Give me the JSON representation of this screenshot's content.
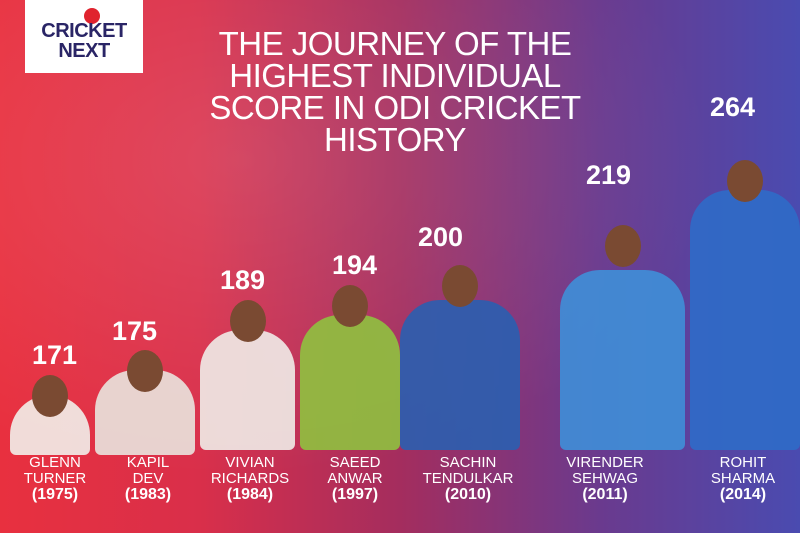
{
  "logo": {
    "line1": "CRICKET",
    "line2": "NEXT"
  },
  "title": "THE JOURNEY OF THE HIGHEST INDIVIDUAL SCORE IN ODI CRICKET HISTORY",
  "players": [
    {
      "first": "GLENN",
      "last": "TURNER",
      "year": "(1975)",
      "score": "171",
      "jersey": "#f2f0ea"
    },
    {
      "first": "KAPIL",
      "last": "DEV",
      "year": "(1983)",
      "score": "175",
      "jersey": "#e9e4de"
    },
    {
      "first": "VIVIAN",
      "last": "RICHARDS",
      "year": "(1984)",
      "score": "189",
      "jersey": "#efece8"
    },
    {
      "first": "SAEED",
      "last": "ANWAR",
      "year": "(1997)",
      "score": "194",
      "jersey": "#8fc23f"
    },
    {
      "first": "SACHIN",
      "last": "TENDULKAR",
      "year": "(2010)",
      "score": "200",
      "jersey": "#2a5fb0"
    },
    {
      "first": "VIRENDER",
      "last": "SEHWAG",
      "year": "(2011)",
      "score": "219",
      "jersey": "#3f8fd8"
    },
    {
      "first": "ROHIT",
      "last": "SHARMA",
      "year": "(2014)",
      "score": "264",
      "jersey": "#2f6cc8"
    }
  ]
}
